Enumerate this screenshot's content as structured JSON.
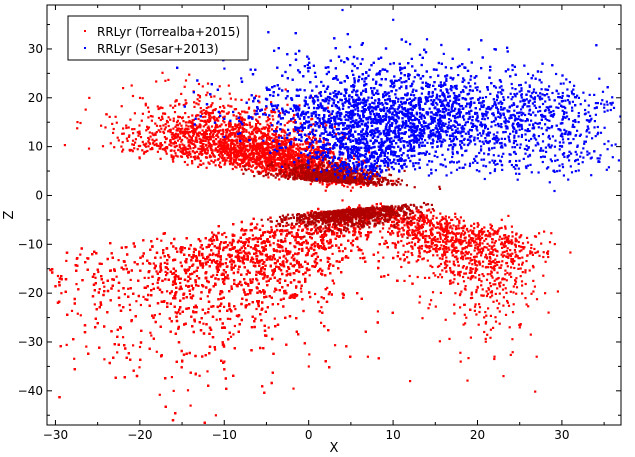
{
  "chart_data": {
    "type": "scatter",
    "xlabel": "X",
    "ylabel": "Z",
    "xlim": [
      -31,
      37
    ],
    "ylim": [
      -47,
      39
    ],
    "xticks": [
      -30,
      -20,
      -10,
      0,
      10,
      20,
      30
    ],
    "yticks": [
      -40,
      -30,
      -20,
      -10,
      0,
      10,
      20,
      30
    ],
    "grid": false,
    "legend_position": "top-left",
    "series": [
      {
        "name": "RRLyr (Torrealba+2015)",
        "color": "#ff0000",
        "distribution": "dense scatter below the plane (Z from about -2 to -45) and a thinner band above it (Z 0 to 24, X mostly -20 to 10)",
        "points": [
          [
            -29.5,
            -17
          ],
          [
            -29.3,
            -20
          ],
          [
            -26,
            20
          ],
          [
            -22,
            22
          ],
          [
            -20,
            20
          ],
          [
            -19,
            16
          ],
          [
            -16,
            -40
          ],
          [
            -14,
            -43
          ],
          [
            -11,
            -45
          ],
          [
            -12,
            -36
          ],
          [
            -15,
            -34
          ],
          [
            -18,
            -32
          ],
          [
            -22,
            -29
          ],
          [
            -20,
            -31
          ],
          [
            -10,
            -34
          ],
          [
            0,
            -35
          ],
          [
            7,
            -33
          ],
          [
            12,
            -38
          ],
          [
            18,
            -34
          ],
          [
            22,
            -33
          ],
          [
            27,
            -33
          ],
          [
            25,
            -27
          ],
          [
            22,
            -15
          ],
          [
            28,
            -20
          ],
          [
            24,
            -13
          ],
          [
            20,
            -10
          ],
          [
            17,
            -10
          ],
          [
            13,
            -3
          ],
          [
            6,
            -2
          ],
          [
            4,
            -1
          ],
          [
            2,
            1
          ],
          [
            5,
            1
          ],
          [
            8,
            2
          ],
          [
            10,
            3
          ],
          [
            -3,
            4
          ],
          [
            -8,
            9
          ],
          [
            -12,
            12
          ],
          [
            -14,
            15
          ],
          [
            -18,
            13
          ],
          [
            -16,
            8
          ],
          [
            -10,
            15
          ],
          [
            -5,
            18
          ]
        ]
      },
      {
        "name": "RRLyr (Sesar+2013)",
        "color": "#0000ff",
        "distribution": "dense scatter above the plane, Z from about 2 to 38, X from about -12 to 36",
        "points": [
          [
            4,
            38
          ],
          [
            10,
            36
          ],
          [
            14,
            32
          ],
          [
            12,
            31
          ],
          [
            16,
            29
          ],
          [
            22,
            30
          ],
          [
            -10,
            26
          ],
          [
            -8,
            24
          ],
          [
            0,
            28
          ],
          [
            30,
            20
          ],
          [
            32,
            20
          ],
          [
            35,
            18
          ],
          [
            36,
            19
          ],
          [
            30,
            10
          ],
          [
            26,
            8
          ],
          [
            21,
            6
          ],
          [
            -8,
            15
          ],
          [
            -10,
            12
          ]
        ]
      }
    ]
  }
}
